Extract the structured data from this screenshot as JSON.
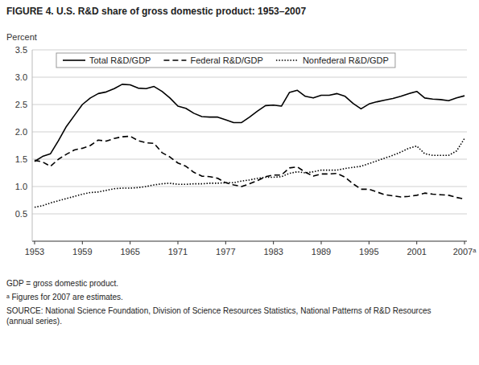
{
  "chart_data": {
    "type": "line",
    "title": "FIGURE 4.  U.S. R&D share of gross domestic product: 1953–2007",
    "y_label": "Percent",
    "annotations": [
      "GDP = gross domestic product.",
      "ᵃ Figures for 2007 are estimates.",
      "SOURCE:  National Science Foundation, Division of Science Resources Statistics, National Patterns of R&D Resources\n(annual series)."
    ],
    "x": [
      1953,
      1954,
      1955,
      1956,
      1957,
      1958,
      1959,
      1960,
      1961,
      1962,
      1963,
      1964,
      1965,
      1966,
      1967,
      1968,
      1969,
      1970,
      1971,
      1972,
      1973,
      1974,
      1975,
      1976,
      1977,
      1978,
      1979,
      1980,
      1981,
      1982,
      1983,
      1984,
      1985,
      1986,
      1987,
      1988,
      1989,
      1990,
      1991,
      1992,
      1993,
      1994,
      1995,
      1996,
      1997,
      1998,
      1999,
      2000,
      2001,
      2002,
      2003,
      2004,
      2005,
      2006,
      2007
    ],
    "series": [
      {
        "name": "Total R&D/GDP",
        "color": "#000000",
        "line_style": "solid",
        "values": [
          1.46,
          1.55,
          1.6,
          1.84,
          2.1,
          2.3,
          2.5,
          2.62,
          2.7,
          2.73,
          2.79,
          2.87,
          2.86,
          2.8,
          2.79,
          2.83,
          2.74,
          2.62,
          2.47,
          2.43,
          2.34,
          2.28,
          2.27,
          2.27,
          2.22,
          2.17,
          2.17,
          2.27,
          2.38,
          2.48,
          2.49,
          2.47,
          2.72,
          2.76,
          2.65,
          2.62,
          2.67,
          2.67,
          2.7,
          2.65,
          2.52,
          2.42,
          2.51,
          2.55,
          2.58,
          2.61,
          2.65,
          2.7,
          2.74,
          2.62,
          2.6,
          2.59,
          2.57,
          2.62,
          2.66
        ]
      },
      {
        "name": "Federal R&D/GDP",
        "color": "#000000",
        "line_style": "dashed",
        "values": [
          1.48,
          1.45,
          1.37,
          1.5,
          1.59,
          1.67,
          1.7,
          1.75,
          1.85,
          1.83,
          1.88,
          1.91,
          1.92,
          1.84,
          1.8,
          1.79,
          1.62,
          1.54,
          1.43,
          1.37,
          1.26,
          1.19,
          1.18,
          1.15,
          1.07,
          1.03,
          1.0,
          1.05,
          1.11,
          1.18,
          1.21,
          1.21,
          1.34,
          1.36,
          1.26,
          1.19,
          1.23,
          1.23,
          1.24,
          1.17,
          1.05,
          0.95,
          0.95,
          0.9,
          0.85,
          0.83,
          0.81,
          0.82,
          0.84,
          0.88,
          0.86,
          0.85,
          0.84,
          0.8,
          0.77
        ]
      },
      {
        "name": "Nonfederal R&D/GDP",
        "color": "#000000",
        "line_style": "dotted",
        "values": [
          0.62,
          0.65,
          0.7,
          0.74,
          0.78,
          0.82,
          0.86,
          0.89,
          0.9,
          0.93,
          0.96,
          0.97,
          0.97,
          0.98,
          1.0,
          1.03,
          1.05,
          1.06,
          1.04,
          1.04,
          1.05,
          1.05,
          1.06,
          1.06,
          1.07,
          1.07,
          1.1,
          1.12,
          1.15,
          1.17,
          1.17,
          1.18,
          1.24,
          1.27,
          1.25,
          1.27,
          1.3,
          1.3,
          1.3,
          1.33,
          1.35,
          1.37,
          1.42,
          1.47,
          1.52,
          1.57,
          1.63,
          1.7,
          1.74,
          1.6,
          1.57,
          1.57,
          1.57,
          1.65,
          1.88
        ]
      }
    ],
    "xlim": [
      1952.7,
      2007.3
    ],
    "ylim": [
      0,
      3.5
    ],
    "xticks": [
      1953,
      1959,
      1965,
      1971,
      1977,
      1983,
      1989,
      1995,
      2001,
      {
        "value": 2007,
        "label": "2007ᵃ"
      }
    ],
    "yticks": [
      0.5,
      {
        "value": 1.0,
        "label": "1.0"
      },
      1.5,
      {
        "value": 2.0,
        "label": "2.0"
      },
      2.5,
      {
        "value": 3.0,
        "label": "3.0"
      },
      3.5
    ],
    "grid": true,
    "legend": "top"
  }
}
